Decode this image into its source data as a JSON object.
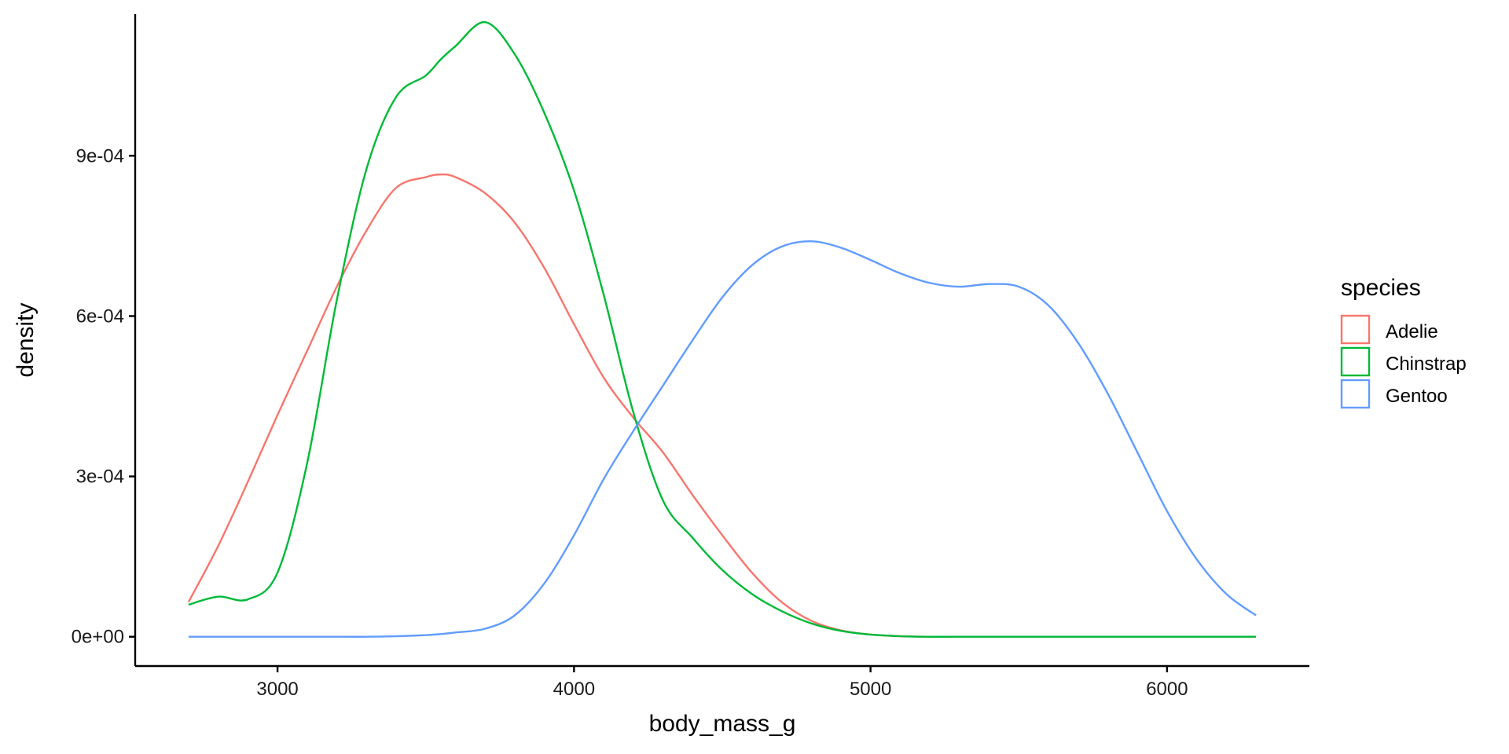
{
  "chart_data": {
    "type": "line",
    "title": "",
    "xlabel": "body_mass_g",
    "ylabel": "density",
    "xlim": [
      2520,
      6480
    ],
    "ylim": [
      -5.48e-05,
      0.001165
    ],
    "x_ticks": [
      3000,
      4000,
      5000,
      6000
    ],
    "x_tick_labels": [
      "3000",
      "4000",
      "5000",
      "6000"
    ],
    "y_ticks": [
      0,
      0.0003,
      0.0006,
      0.0009
    ],
    "y_tick_labels": [
      "0e+00",
      "3e-04",
      "6e-04",
      "9e-04"
    ],
    "grid": false,
    "legend": {
      "title": "species",
      "placement": "right"
    },
    "x": [
      2700,
      2800,
      2900,
      3000,
      3100,
      3200,
      3300,
      3400,
      3500,
      3550,
      3600,
      3700,
      3800,
      3900,
      4000,
      4100,
      4200,
      4300,
      4400,
      4500,
      4600,
      4700,
      4800,
      4900,
      5000,
      5100,
      5200,
      5300,
      5400,
      5500,
      5600,
      5700,
      5800,
      5900,
      6000,
      6100,
      6200,
      6300
    ],
    "series": [
      {
        "name": "Adelie",
        "color": "#F8766D",
        "values": [
          6.5e-05,
          0.00017,
          0.00029,
          0.000415,
          0.000535,
          0.000655,
          0.00076,
          0.00084,
          0.00086,
          0.000865,
          0.00086,
          0.00083,
          0.000775,
          0.00069,
          0.000585,
          0.000485,
          0.00041,
          0.000345,
          0.000265,
          0.00019,
          0.00012,
          6.5e-05,
          3e-05,
          1.2e-05,
          4e-06,
          1e-06,
          0,
          0,
          0,
          0,
          0,
          0,
          0,
          0,
          0,
          0,
          0,
          0
        ]
      },
      {
        "name": "Chinstrap",
        "color": "#00BA38",
        "values": [
          6e-05,
          7.5e-05,
          7e-05,
          0.00012,
          0.000325,
          0.00063,
          0.000875,
          0.00101,
          0.00105,
          0.00108,
          0.001105,
          0.00115,
          0.00109,
          0.00098,
          0.000835,
          0.00064,
          0.00042,
          0.000255,
          0.000185,
          0.000125,
          8e-05,
          4.8e-05,
          2.5e-05,
          1.1e-05,
          4e-06,
          1e-06,
          0,
          0,
          0,
          0,
          0,
          0,
          0,
          0,
          0,
          0,
          0,
          0
        ]
      },
      {
        "name": "Gentoo",
        "color": "#619CFF",
        "values": [
          0,
          0,
          0,
          0,
          0,
          0,
          0,
          1e-06,
          3e-06,
          5e-06,
          8e-06,
          1.5e-05,
          4e-05,
          0.0001,
          0.00019,
          0.000295,
          0.000385,
          0.00047,
          0.000555,
          0.000635,
          0.000695,
          0.00073,
          0.00074,
          0.000728,
          0.000705,
          0.00068,
          0.000662,
          0.000655,
          0.00066,
          0.000655,
          0.00062,
          0.00055,
          0.000455,
          0.000345,
          0.000235,
          0.000145,
          8e-05,
          4e-05
        ]
      }
    ]
  }
}
